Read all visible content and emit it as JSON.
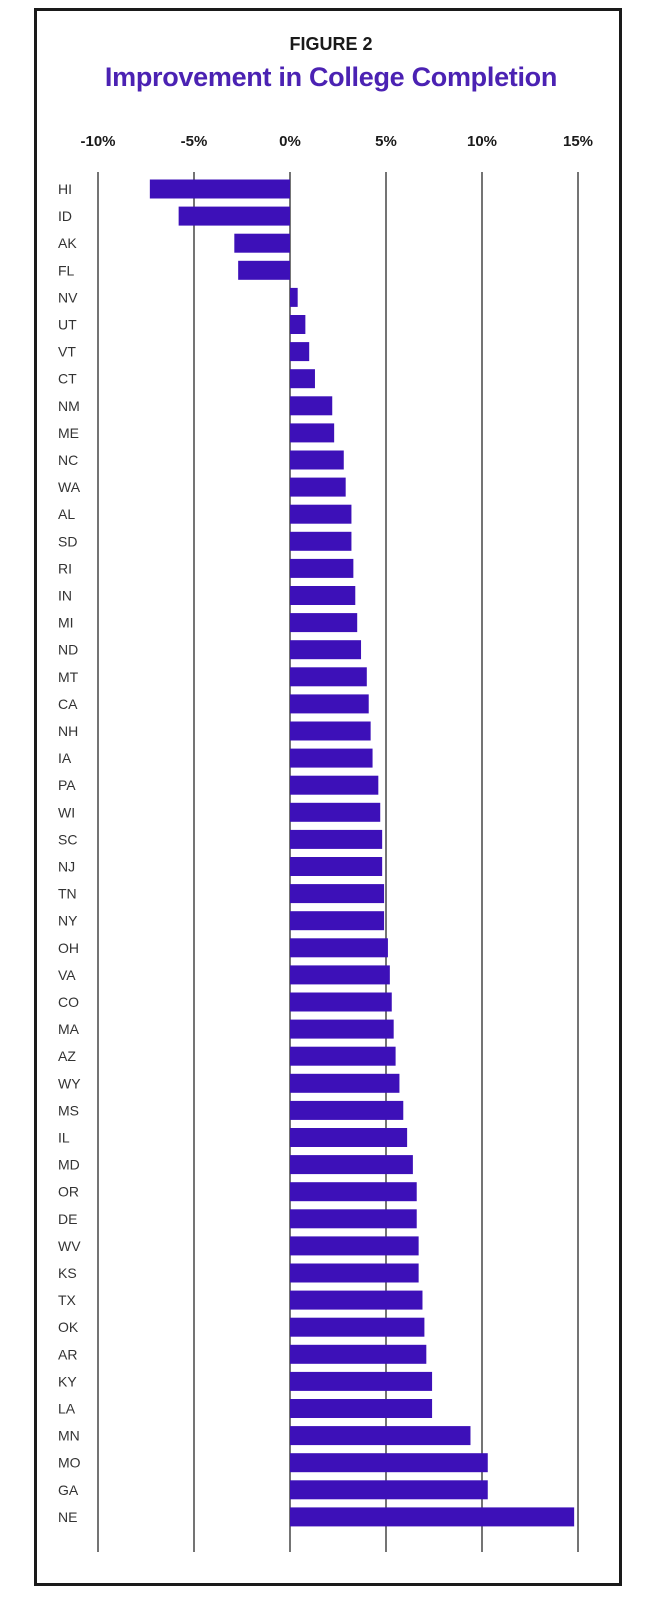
{
  "figure_label": "FIGURE 2",
  "title": "Improvement in College Completion",
  "colors": {
    "bar": "#3d10b8",
    "title": "#4b22b3",
    "grid": "#2a2a2a"
  },
  "chart_data": {
    "type": "bar",
    "orientation": "horizontal",
    "title": "Improvement in College Completion",
    "xlim": [
      -10,
      15
    ],
    "ticks": [
      -10,
      -5,
      0,
      5,
      10,
      15
    ],
    "tick_labels": [
      "-10%",
      "-5%",
      "0%",
      "5%",
      "10%",
      "15%"
    ],
    "grid": "vertical",
    "categories": [
      "HI",
      "ID",
      "AK",
      "FL",
      "NV",
      "UT",
      "VT",
      "CT",
      "NM",
      "ME",
      "NC",
      "WA",
      "AL",
      "SD",
      "RI",
      "IN",
      "MI",
      "ND",
      "MT",
      "CA",
      "NH",
      "IA",
      "PA",
      "WI",
      "SC",
      "NJ",
      "TN",
      "NY",
      "OH",
      "VA",
      "CO",
      "MA",
      "AZ",
      "WY",
      "MS",
      "IL",
      "MD",
      "OR",
      "DE",
      "WV",
      "KS",
      "TX",
      "OK",
      "AR",
      "KY",
      "LA",
      "MN",
      "MO",
      "GA",
      "NE"
    ],
    "values": [
      -7.3,
      -5.8,
      -2.9,
      -2.7,
      0.4,
      0.8,
      1.0,
      1.3,
      2.2,
      2.3,
      2.8,
      2.9,
      3.2,
      3.2,
      3.3,
      3.4,
      3.5,
      3.7,
      4.0,
      4.1,
      4.2,
      4.3,
      4.6,
      4.7,
      4.8,
      4.8,
      4.9,
      4.9,
      5.1,
      5.2,
      5.3,
      5.4,
      5.5,
      5.7,
      5.9,
      6.1,
      6.4,
      6.6,
      6.6,
      6.7,
      6.7,
      6.9,
      7.0,
      7.1,
      7.4,
      7.4,
      9.4,
      10.3,
      10.3,
      14.8
    ]
  }
}
